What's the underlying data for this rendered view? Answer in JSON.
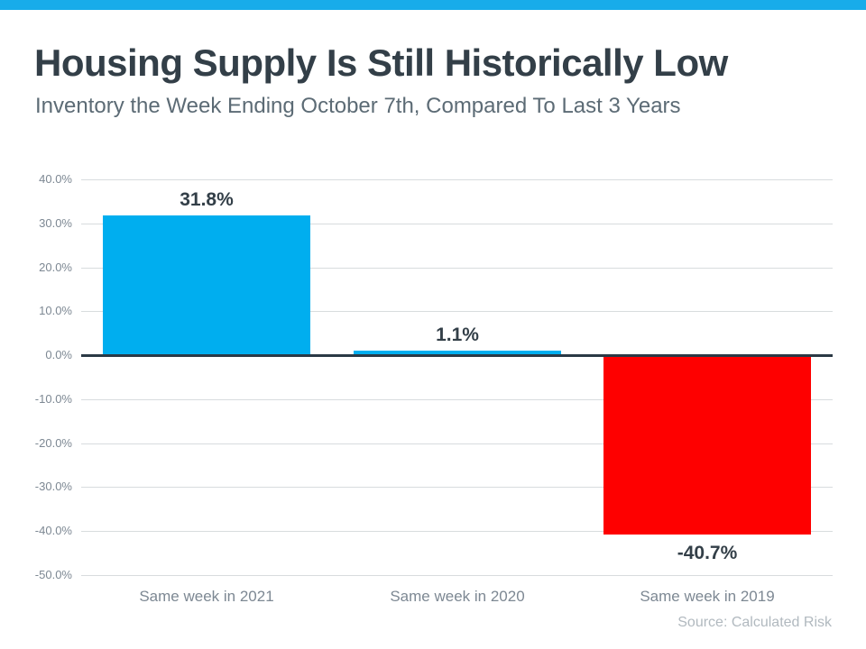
{
  "page": {
    "accent_color": "#18ACEA"
  },
  "header": {
    "title": "Housing Supply Is Still Historically Low",
    "subtitle": "Inventory the Week Ending October 7th, Compared To Last 3 Years"
  },
  "chart_data": {
    "type": "bar",
    "title": "Housing Supply Is Still Historically Low",
    "subtitle": "Inventory the Week Ending October 7th, Compared To Last 3 Years",
    "categories": [
      "Same week in 2021",
      "Same week in 2020",
      "Same week in 2019"
    ],
    "values": [
      31.8,
      1.1,
      -40.7
    ],
    "value_labels": [
      "31.8%",
      "1.1%",
      "-40.7%"
    ],
    "bar_colors": [
      "#00AEEF",
      "#00AEEF",
      "#FE0000"
    ],
    "positive_color": "#00AEEF",
    "negative_color": "#FE0000",
    "xlabel": "",
    "ylabel": "",
    "ylim": [
      -50,
      40
    ],
    "yticks": [
      {
        "value": 40,
        "label": "40.0%"
      },
      {
        "value": 30,
        "label": "30.0%"
      },
      {
        "value": 20,
        "label": "20.0%"
      },
      {
        "value": 10,
        "label": "10.0%"
      },
      {
        "value": 0,
        "label": "0.0%"
      },
      {
        "value": -10,
        "label": "-10.0%"
      },
      {
        "value": -20,
        "label": "-20.0%"
      },
      {
        "value": -30,
        "label": "-30.0%"
      },
      {
        "value": -40,
        "label": "-40.0%"
      },
      {
        "value": -50,
        "label": "-50.0%"
      }
    ],
    "grid": "horizontal",
    "legend": "none",
    "zero_axis": true
  },
  "footer": {
    "source": "Source: Calculated Risk"
  }
}
